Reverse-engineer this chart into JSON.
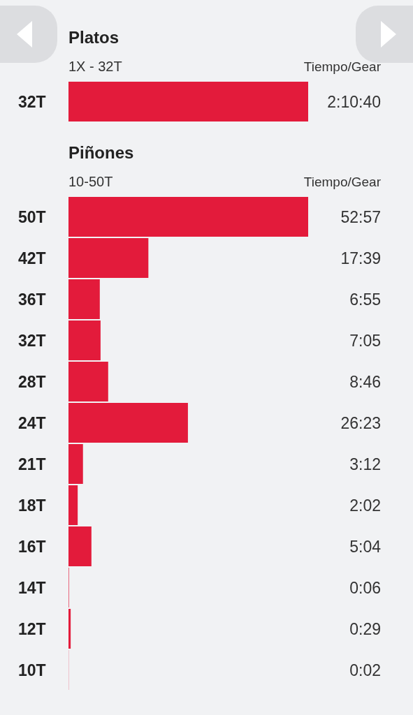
{
  "chart_data": [
    {
      "type": "bar",
      "orientation": "horizontal",
      "title": "Platos",
      "subtitle": "1X - 32T",
      "annotations": [
        "Tiempo/Gear"
      ],
      "categories": [
        "32T"
      ],
      "values": [
        130.6667
      ],
      "value_labels": [
        "2:10:40"
      ],
      "color": "#e31b3b"
    },
    {
      "type": "bar",
      "orientation": "horizontal",
      "title": "Piñones",
      "subtitle": "10-50T",
      "annotations": [
        "Tiempo/Gear"
      ],
      "categories": [
        "50T",
        "42T",
        "36T",
        "32T",
        "28T",
        "24T",
        "21T",
        "18T",
        "16T",
        "14T",
        "12T",
        "10T"
      ],
      "values": [
        52.95,
        17.65,
        6.9167,
        7.0833,
        8.7667,
        26.3833,
        3.2,
        2.0333,
        5.0667,
        0.1,
        0.4833,
        0.0333
      ],
      "value_labels": [
        "52:57",
        "17:39",
        "6:55",
        "7:05",
        "8:46",
        "26:23",
        "3:12",
        "2:02",
        "5:04",
        "0:06",
        "0:29",
        "0:02"
      ],
      "color": "#e31b3b"
    }
  ]
}
